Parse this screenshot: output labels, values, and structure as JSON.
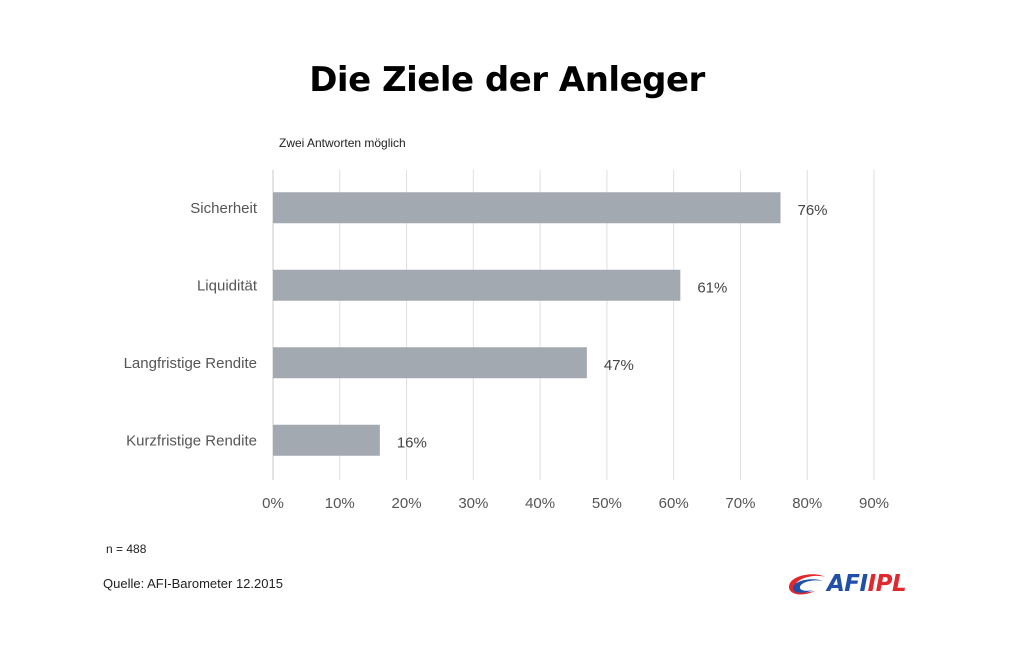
{
  "chart_data": {
    "type": "bar",
    "orientation": "horizontal",
    "title": "Die Ziele der Anleger",
    "subtitle": "Zwei Antworten möglich",
    "categories": [
      "Sicherheit",
      "Liquidität",
      "Langfristige Rendite",
      "Kurzfristige Rendite"
    ],
    "values": [
      76,
      61,
      47,
      16
    ],
    "value_labels": [
      "76%",
      "61%",
      "47%",
      "16%"
    ],
    "xlim": [
      0,
      90
    ],
    "x_ticks": [
      0,
      10,
      20,
      30,
      40,
      50,
      60,
      70,
      80,
      90
    ],
    "x_tick_labels": [
      "0%",
      "10%",
      "20%",
      "30%",
      "40%",
      "50%",
      "60%",
      "70%",
      "80%",
      "90%"
    ],
    "grid": true,
    "bar_color": "#a3a9b1"
  },
  "footer": {
    "sample": "n = 488",
    "source": "Quelle: AFI-Barometer 12.2015"
  },
  "logo": {
    "text_left": "AFI",
    "text_right": "IPL",
    "color_blue": "#1f4fa8",
    "color_red": "#e0282e"
  }
}
